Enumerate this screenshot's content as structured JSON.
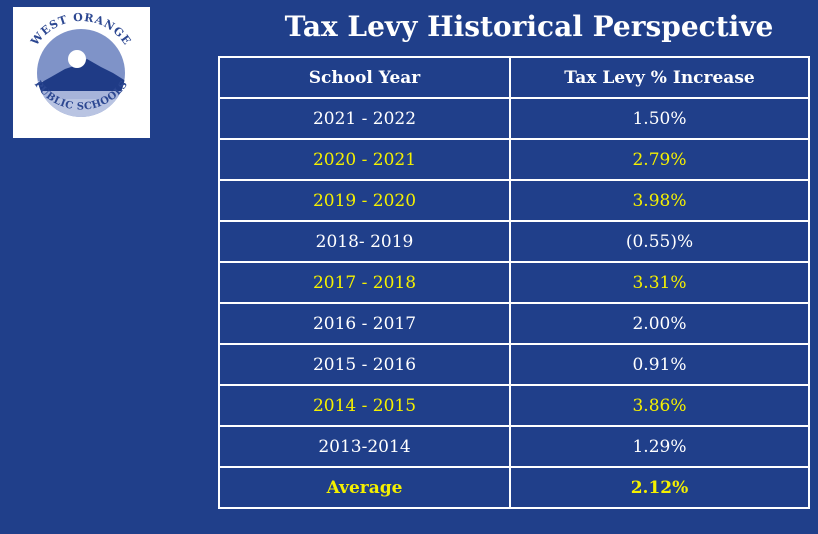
{
  "logo": {
    "arc_top": "WEST ORANGE",
    "arc_bottom": "PUBLIC SCHOOLS",
    "circle_color": "#7f93c8",
    "mountain_color": "#1f3b86"
  },
  "title": "Tax Levy Historical Perspective",
  "table": {
    "headers": {
      "year": "School Year",
      "increase": "Tax Levy % Increase"
    },
    "rows": [
      {
        "year": "2021 - 2022",
        "increase": "1.50%"
      },
      {
        "year": "2020 - 2021",
        "increase": "2.79%"
      },
      {
        "year": "2019 - 2020",
        "increase": "3.98%"
      },
      {
        "year": "2018- 2019",
        "increase": "(0.55)%"
      },
      {
        "year": "2017 - 2018",
        "increase": "3.31%"
      },
      {
        "year": "2016 - 2017",
        "increase": "2.00%"
      },
      {
        "year": "2015 - 2016",
        "increase": "0.91%"
      },
      {
        "year": "2014 - 2015",
        "increase": "3.86%"
      },
      {
        "year": "2013-2014",
        "increase": "1.29%"
      }
    ],
    "average": {
      "year": "Average",
      "increase": "2.12%"
    }
  },
  "colors": {
    "background": "#203f8a",
    "highlight_text": "#f4f000",
    "text": "#ffffff",
    "grid": "#ffffff"
  }
}
